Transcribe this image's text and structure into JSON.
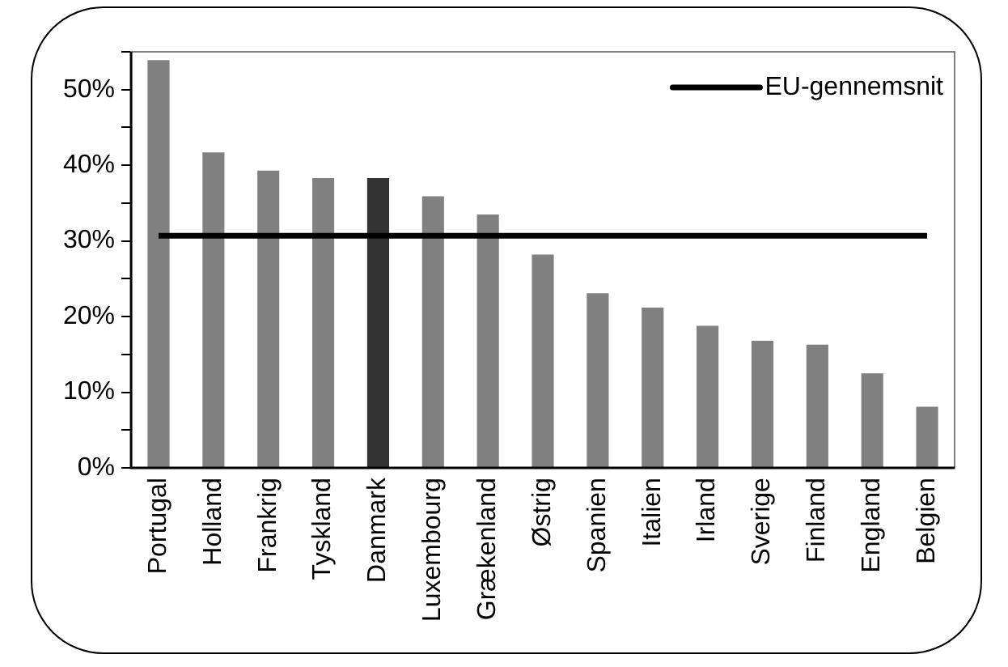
{
  "chart_data": {
    "type": "bar",
    "categories": [
      "Portugal",
      "Holland",
      "Frankrig",
      "Tyskland",
      "Danmark",
      "Luxembourg",
      "Grækenland",
      "Østrig",
      "Spanien",
      "Italien",
      "Irland",
      "Sverige",
      "Finland",
      "England",
      "Belgien"
    ],
    "series": [
      {
        "colors": [
          "#808080",
          "#808080",
          "#808080",
          "#808080",
          "#333333",
          "#808080",
          "#808080",
          "#808080",
          "#808080",
          "#808080",
          "#808080",
          "#808080",
          "#808080",
          "#808080",
          "#808080"
        ],
        "values": [
          53.9,
          41.7,
          39.3,
          38.3,
          38.3,
          35.9,
          33.5,
          28.2,
          23.1,
          21.2,
          18.8,
          16.8,
          16.3,
          12.5,
          8.1
        ]
      },
      {
        "type": "line",
        "name": "EU-gennemsnit",
        "color": "#000000",
        "values": [
          30.7,
          30.7,
          30.7,
          30.7,
          30.7,
          30.7,
          30.7,
          30.7,
          30.7,
          30.7,
          30.7,
          30.7,
          30.7,
          30.7,
          30.7
        ]
      }
    ],
    "ylim": [
      0,
      55
    ],
    "yticks": [
      {
        "value": 0,
        "label": "0%"
      },
      {
        "value": 5,
        "label": null
      },
      {
        "value": 10,
        "label": "10%"
      },
      {
        "value": 15,
        "label": null
      },
      {
        "value": 20,
        "label": "20%"
      },
      {
        "value": 25,
        "label": null
      },
      {
        "value": 30,
        "label": "30%"
      },
      {
        "value": 35,
        "label": null
      },
      {
        "value": 40,
        "label": "40%"
      },
      {
        "value": 45,
        "label": null
      },
      {
        "value": 50,
        "label": "50%"
      },
      {
        "value": 55,
        "label": null
      }
    ],
    "grid": false,
    "legend": "top right",
    "marker": "none"
  }
}
